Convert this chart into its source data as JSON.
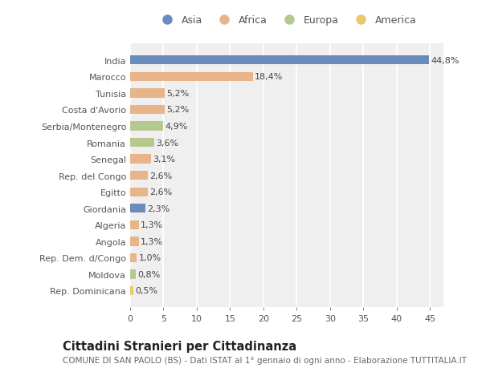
{
  "countries": [
    "India",
    "Marocco",
    "Tunisia",
    "Costa d'Avorio",
    "Serbia/Montenegro",
    "Romania",
    "Senegal",
    "Rep. del Congo",
    "Egitto",
    "Giordania",
    "Algeria",
    "Angola",
    "Rep. Dem. d/Congo",
    "Moldova",
    "Rep. Dominicana"
  ],
  "values": [
    44.8,
    18.4,
    5.2,
    5.2,
    4.9,
    3.6,
    3.1,
    2.6,
    2.6,
    2.3,
    1.3,
    1.3,
    1.0,
    0.8,
    0.5
  ],
  "labels": [
    "44,8%",
    "18,4%",
    "5,2%",
    "5,2%",
    "4,9%",
    "3,6%",
    "3,1%",
    "2,6%",
    "2,6%",
    "2,3%",
    "1,3%",
    "1,3%",
    "1,0%",
    "0,8%",
    "0,5%"
  ],
  "continents": [
    "Asia",
    "Africa",
    "Africa",
    "Africa",
    "Europa",
    "Europa",
    "Africa",
    "Africa",
    "Africa",
    "Asia",
    "Africa",
    "Africa",
    "Africa",
    "Europa",
    "America"
  ],
  "colors": {
    "Asia": "#6b8cba",
    "Africa": "#e8b48a",
    "Europa": "#b5c98e",
    "America": "#e8c96b"
  },
  "legend_order": [
    "Asia",
    "Africa",
    "Europa",
    "America"
  ],
  "title": "Cittadini Stranieri per Cittadinanza",
  "subtitle": "COMUNE DI SAN PAOLO (BS) - Dati ISTAT al 1° gennaio di ogni anno - Elaborazione TUTTITALIA.IT",
  "xlim": [
    0,
    47
  ],
  "xticks": [
    0,
    5,
    10,
    15,
    20,
    25,
    30,
    35,
    40,
    45
  ],
  "bg_color": "#ffffff",
  "plot_bg_color": "#efefef",
  "grid_color": "#ffffff",
  "bar_height": 0.55,
  "label_fontsize": 8.0,
  "tick_fontsize": 8.0,
  "title_fontsize": 10.5,
  "subtitle_fontsize": 7.5
}
